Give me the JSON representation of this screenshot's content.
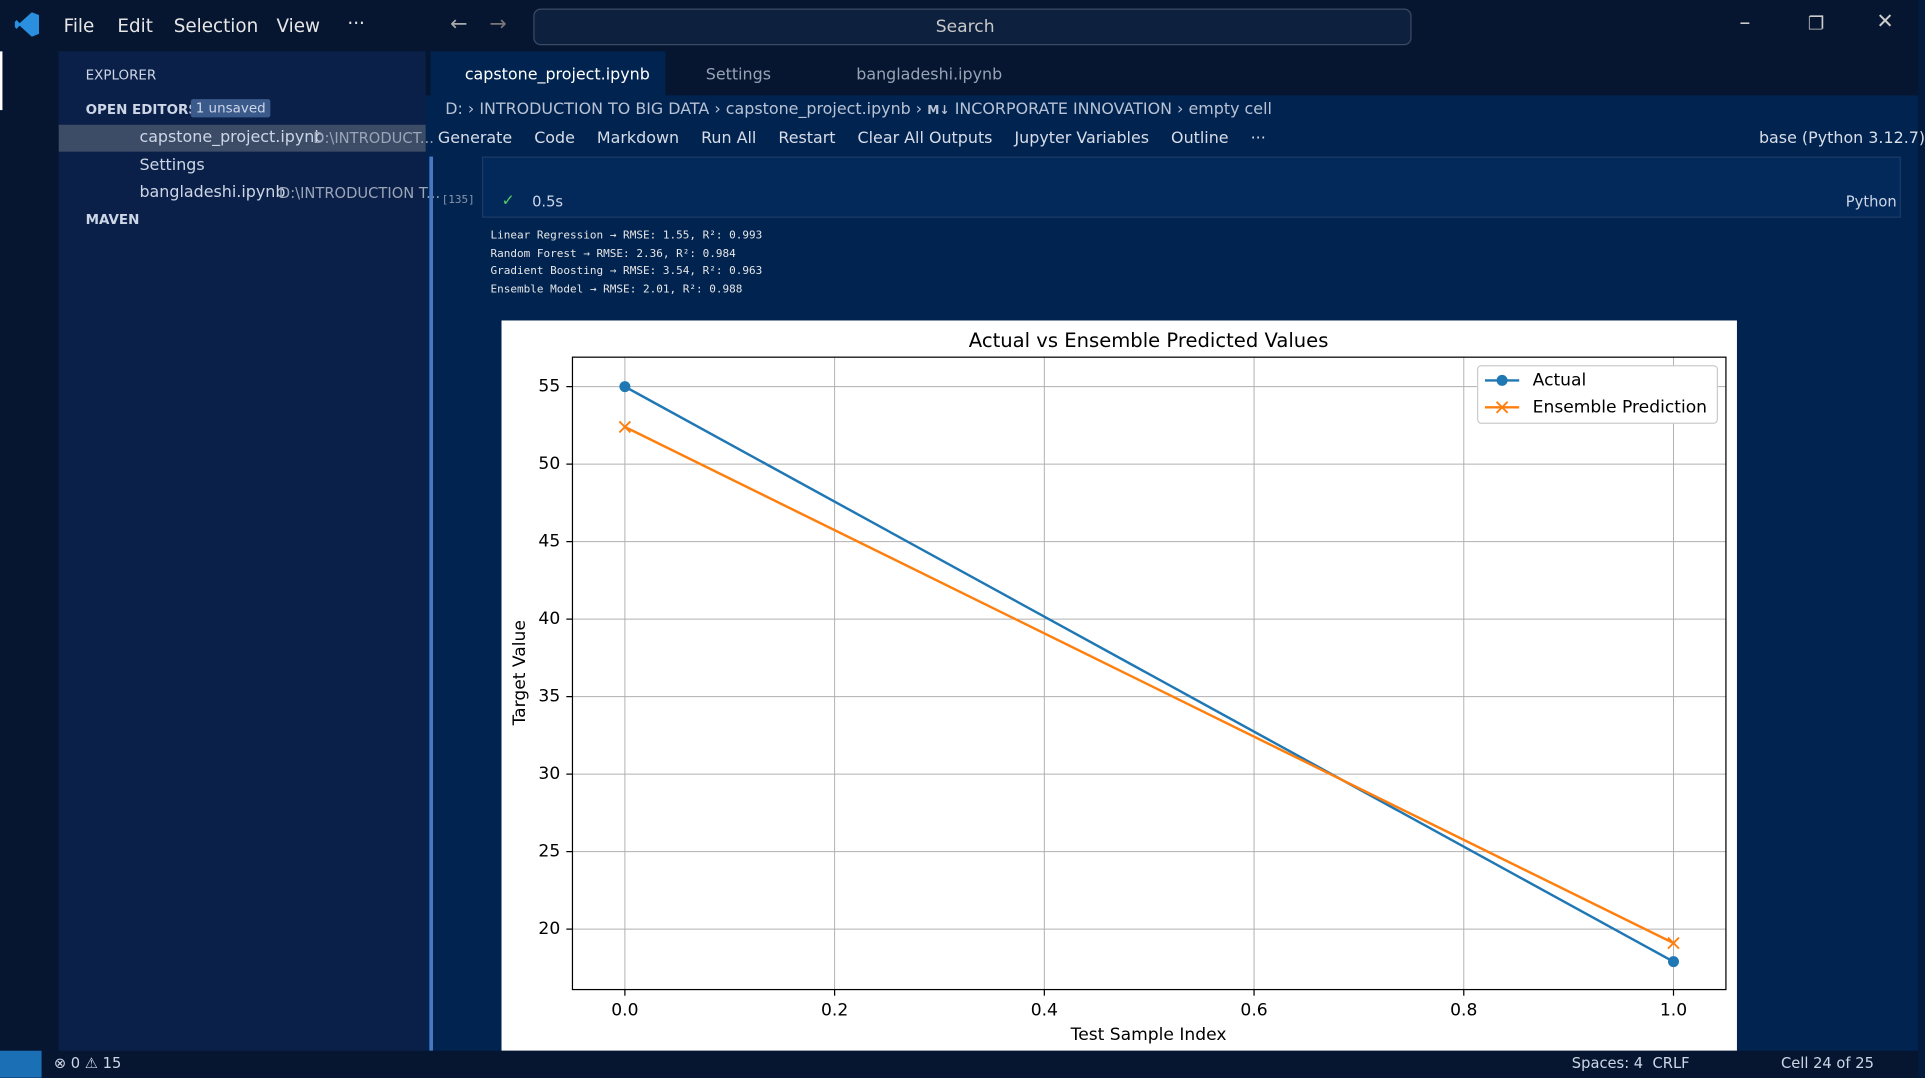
{
  "menu": [
    "File",
    "Edit",
    "Selection",
    "View",
    "···"
  ],
  "search": "Search",
  "explorer": {
    "title": "EXPLORER",
    "section": "OPEN EDITORS",
    "badge": "1 unsaved",
    "items": [
      {
        "name": "capstone_project.ipynb",
        "path": "D:\\INTRODUCT..."
      },
      {
        "name": "Settings"
      },
      {
        "name": "bangladeshi.ipynb",
        "path": "D:\\INTRODUCTION T..."
      }
    ],
    "section2": "MAVEN"
  },
  "tabs": [
    "capstone_project.ipynb",
    "Settings",
    "bangladeshi.ipynb"
  ],
  "breadcrumb": [
    "D:",
    "INTRODUCTION TO BIG DATA",
    "capstone_project.ipynb",
    "M↓",
    "INCORPORATE INNOVATION",
    "empty cell"
  ],
  "toolbar": [
    "Generate",
    "Code",
    "Markdown",
    "Run All",
    "Restart",
    "Clear All Outputs",
    "Jupyter Variables",
    "Outline",
    "···"
  ],
  "kernel": "base (Python 3.12.7)",
  "cell": {
    "count": "[135]",
    "time": "0.5s",
    "language": "Python"
  },
  "output": [
    "Linear Regression → RMSE: 1.55, R²: 0.993",
    "Random Forest → RMSE: 2.36, R²: 0.984",
    "Gradient Boosting → RMSE: 3.54, R²: 0.963",
    "Ensemble Model → RMSE: 2.01, R²: 0.988"
  ],
  "status": {
    "errors": "0",
    "warnings": "15",
    "spaces": "Spaces: 4",
    "eol": "CRLF",
    "cell": "Cell 24 of 25"
  },
  "chart_data": {
    "type": "line",
    "title": "Actual vs Ensemble Predicted Values",
    "x_label": "Test Sample Index",
    "y_label": "Target Value",
    "x": [
      0,
      1
    ],
    "series": [
      {
        "name": "Actual",
        "color": "#1f77b4",
        "marker": "o",
        "values": [
          55,
          17.9
        ]
      },
      {
        "name": "Ensemble Prediction",
        "color": "#ff7f0e",
        "marker": "x",
        "values": [
          52.4,
          19.1
        ]
      }
    ],
    "xlim": [
      -0.05,
      1.05
    ],
    "ylim": [
      16.1,
      56.9
    ],
    "xticks": [
      {
        "value": 0,
        "label": "0.0"
      },
      0.2,
      0.4,
      0.6,
      0.8,
      {
        "value": 1,
        "label": "1.0"
      }
    ],
    "yticks": [
      20,
      25,
      30,
      35,
      40,
      45,
      50,
      55
    ],
    "grid": true,
    "legend": "upper right"
  }
}
